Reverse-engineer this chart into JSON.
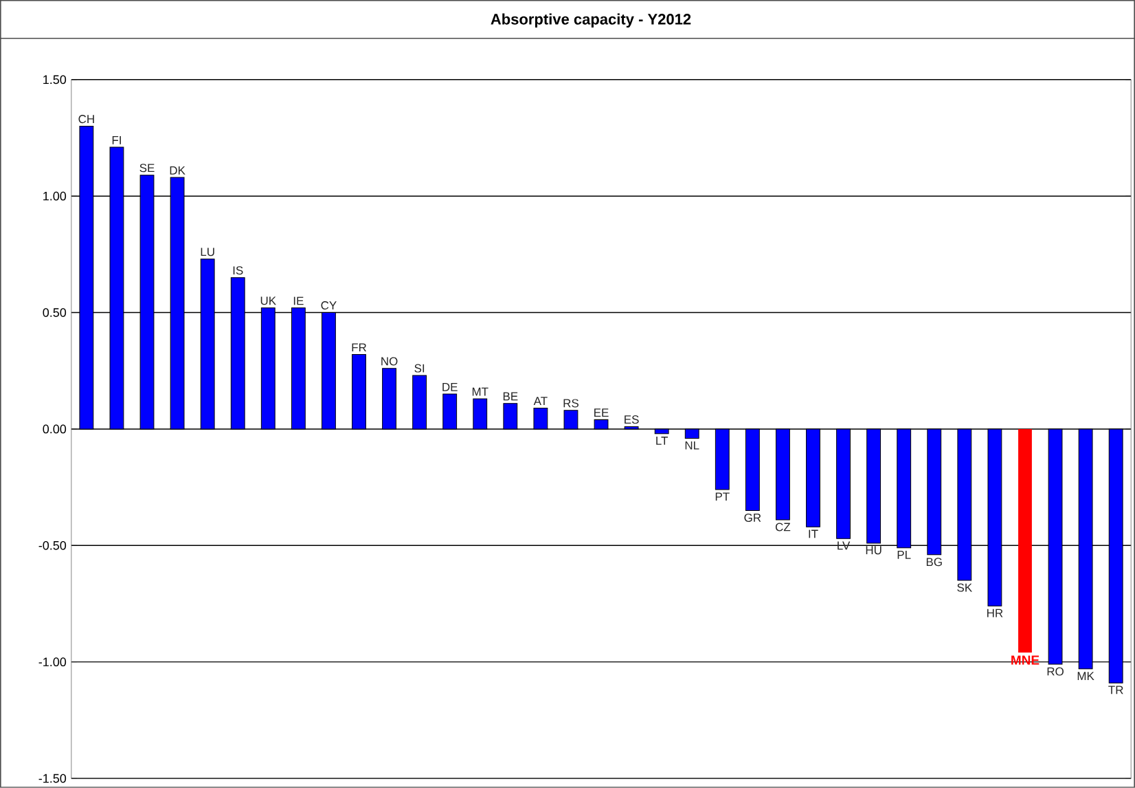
{
  "chart_data": {
    "type": "bar",
    "title": "Absorptive capacity - Y2012",
    "categories": [
      "CH",
      "FI",
      "SE",
      "DK",
      "LU",
      "IS",
      "UK",
      "IE",
      "CY",
      "FR",
      "NO",
      "SI",
      "DE",
      "MT",
      "BE",
      "AT",
      "RS",
      "EE",
      "ES",
      "LT",
      "NL",
      "PT",
      "GR",
      "CZ",
      "IT",
      "LV",
      "HU",
      "PL",
      "BG",
      "SK",
      "HR",
      "MNE",
      "RO",
      "MK",
      "TR"
    ],
    "values": [
      1.3,
      1.21,
      1.09,
      1.08,
      0.73,
      0.65,
      0.52,
      0.52,
      0.5,
      0.32,
      0.26,
      0.23,
      0.15,
      0.13,
      0.11,
      0.09,
      0.08,
      0.04,
      0.01,
      -0.02,
      -0.04,
      -0.26,
      -0.35,
      -0.39,
      -0.42,
      -0.47,
      -0.49,
      -0.51,
      -0.54,
      -0.65,
      -0.76,
      -0.96,
      -1.01,
      -1.03,
      -1.09
    ],
    "colors": [
      "#0000ff",
      "#0000ff",
      "#0000ff",
      "#0000ff",
      "#0000ff",
      "#0000ff",
      "#0000ff",
      "#0000ff",
      "#0000ff",
      "#0000ff",
      "#0000ff",
      "#0000ff",
      "#0000ff",
      "#0000ff",
      "#0000ff",
      "#0000ff",
      "#0000ff",
      "#0000ff",
      "#0000ff",
      "#0000ff",
      "#0000ff",
      "#0000ff",
      "#0000ff",
      "#0000ff",
      "#0000ff",
      "#0000ff",
      "#0000ff",
      "#0000ff",
      "#0000ff",
      "#0000ff",
      "#0000ff",
      "#ff0000",
      "#0000ff",
      "#0000ff",
      "#0000ff"
    ],
    "ylim": [
      -1.5,
      1.5
    ],
    "yticks": [
      {
        "value": -1.5,
        "label": "-1.50"
      },
      {
        "value": -1.0,
        "label": "-1.00"
      },
      {
        "value": -0.5,
        "label": "-0.50"
      },
      {
        "value": 0.0,
        "label": "0.00"
      },
      {
        "value": 0.5,
        "label": "0.50"
      },
      {
        "value": 1.0,
        "label": "1.00"
      },
      {
        "value": 1.5,
        "label": "1.50"
      }
    ],
    "grid": "y"
  }
}
